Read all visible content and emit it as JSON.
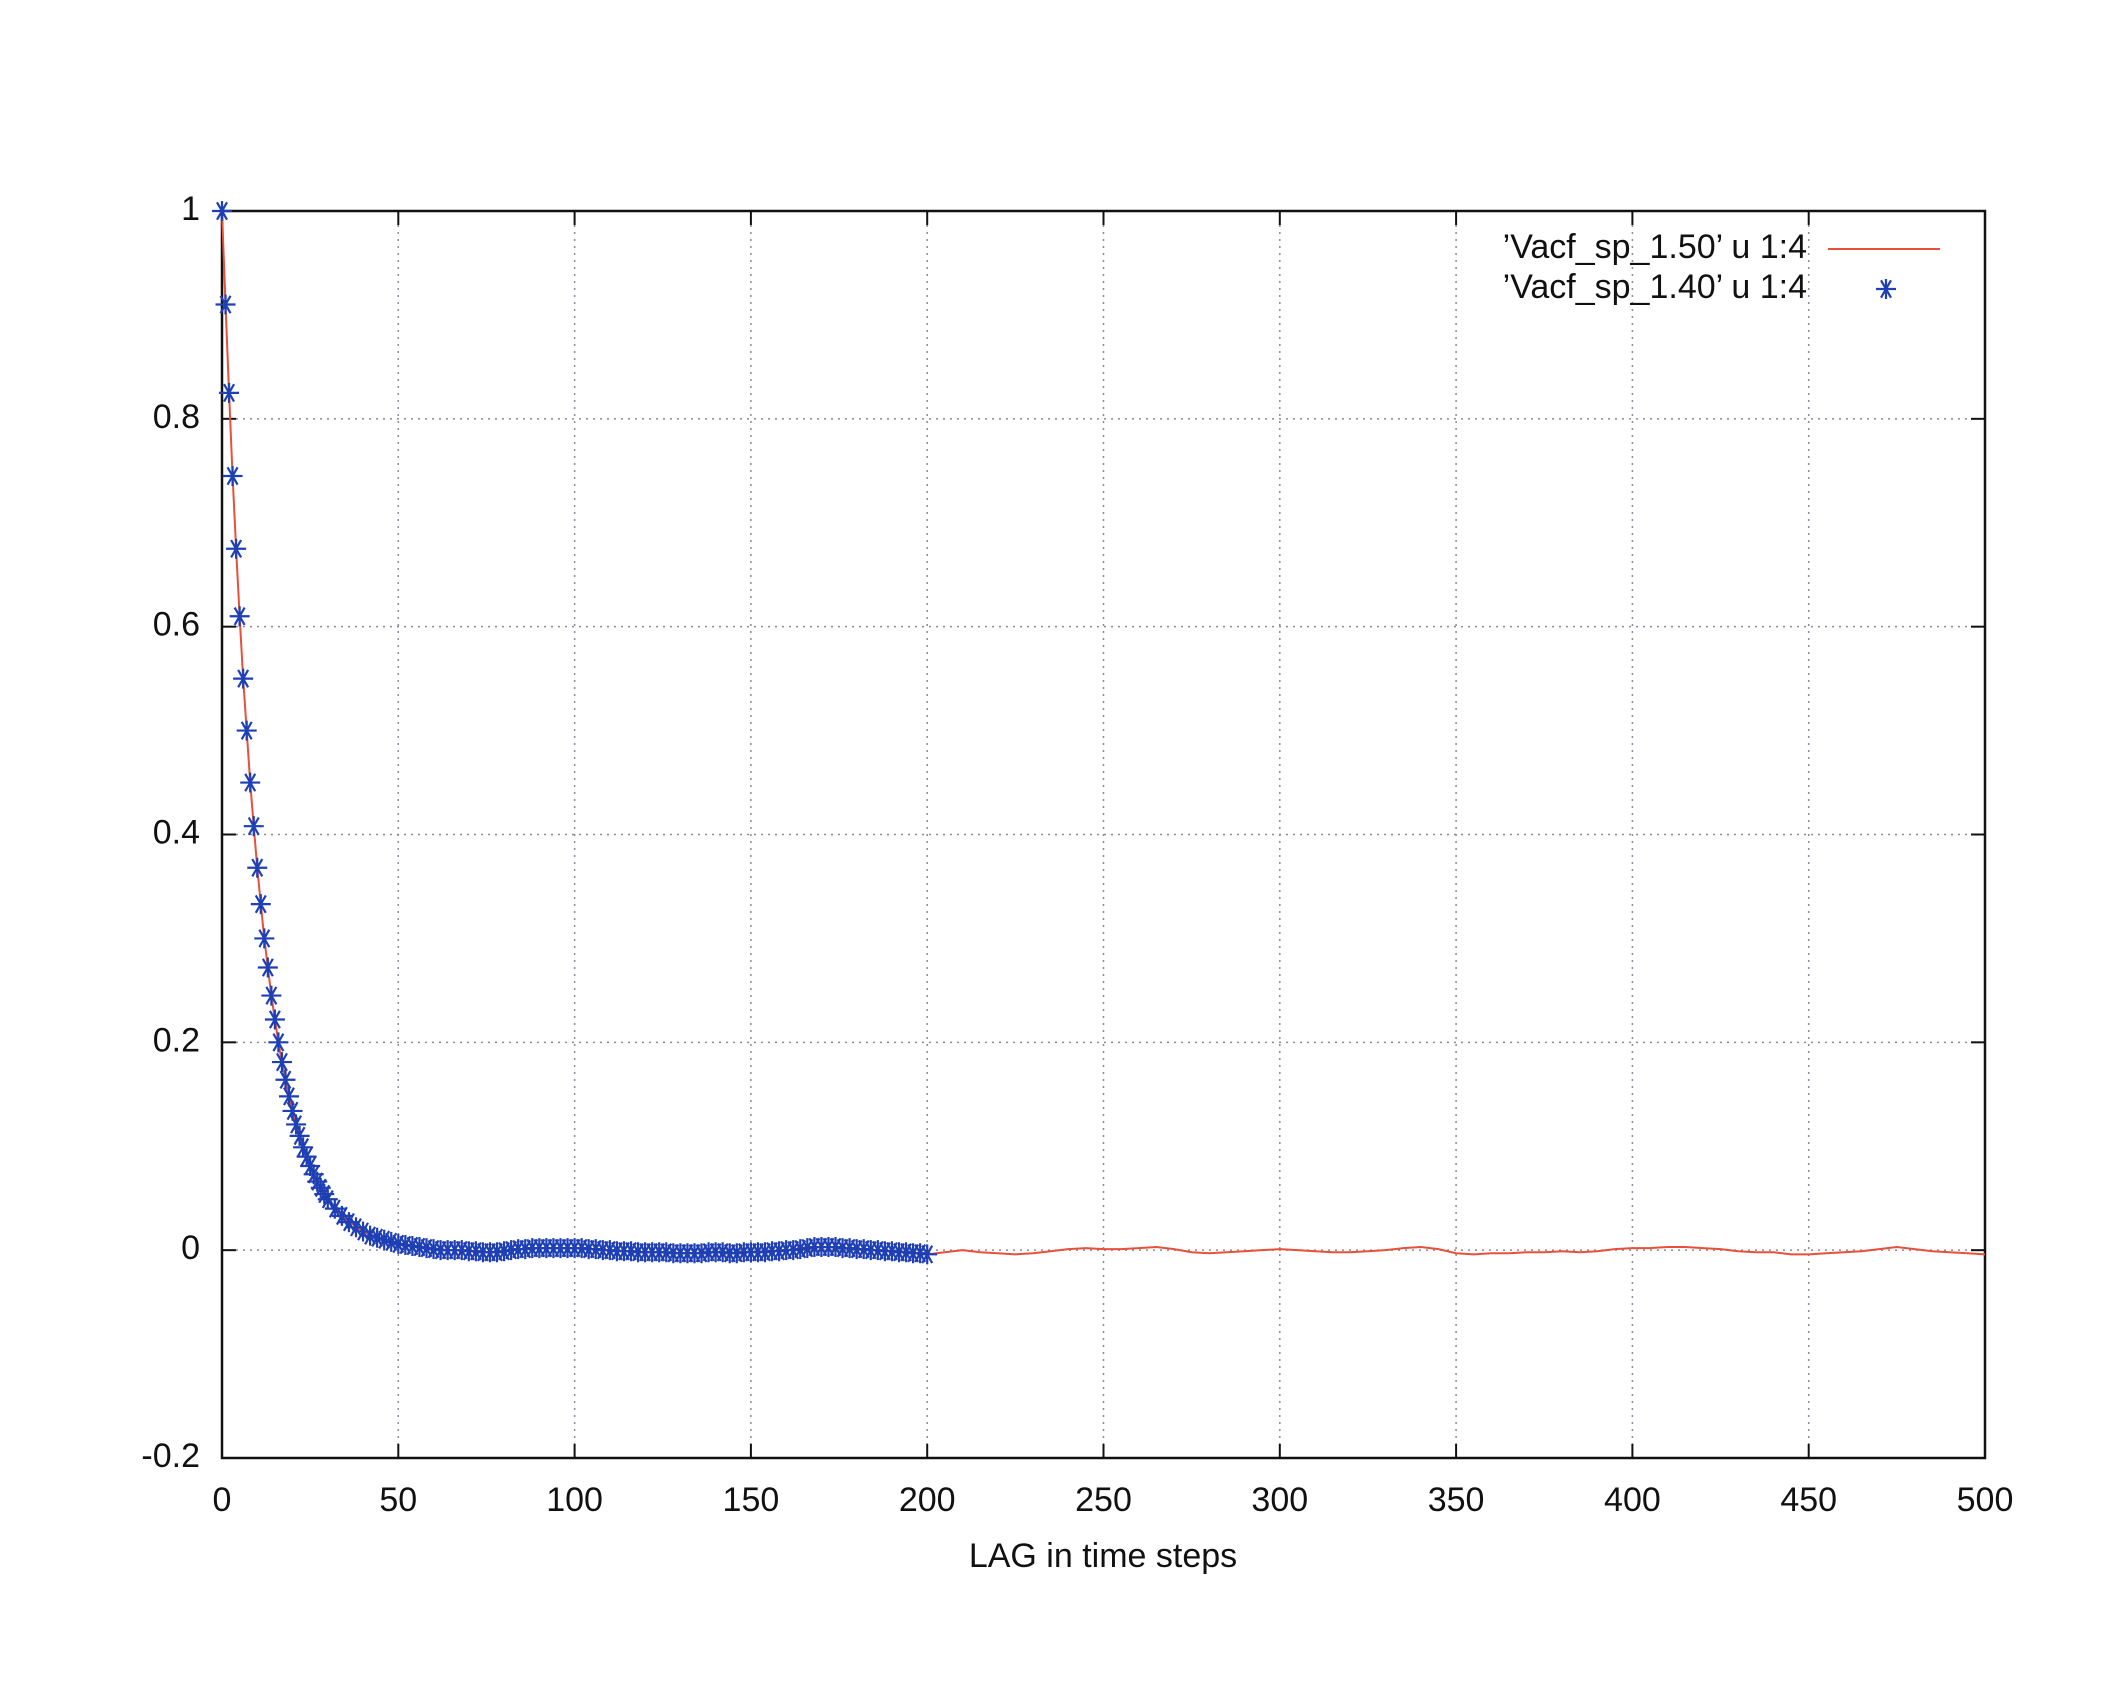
{
  "chart_data": {
    "type": "line",
    "xlabel": "LAG in time steps",
    "xlim": [
      0,
      500
    ],
    "xticks": [
      0,
      50,
      100,
      150,
      200,
      250,
      300,
      350,
      400,
      450,
      500
    ],
    "ylim": [
      -0.2,
      1
    ],
    "yticks": [
      -0.2,
      0,
      0.2,
      0.4,
      0.6,
      0.8,
      1
    ],
    "grid": true,
    "legend": "top-right",
    "series": [
      {
        "name": "’Vacf_sp_1.50’ u 1:4",
        "color": "#e8503a",
        "style": "line",
        "x": [
          0,
          1,
          2,
          3,
          4,
          5,
          6,
          7,
          8,
          9,
          10,
          11,
          12,
          13,
          14,
          15,
          16,
          17,
          18,
          19,
          20,
          21,
          22,
          23,
          24,
          25,
          26,
          27,
          28,
          29,
          30,
          35,
          40,
          45,
          50,
          55,
          60,
          65,
          70,
          75,
          80,
          85,
          90,
          95,
          100,
          105,
          110,
          115,
          120,
          125,
          130,
          135,
          140,
          145,
          150,
          155,
          160,
          165,
          170,
          175,
          180,
          185,
          190,
          195,
          200,
          205,
          210,
          215,
          220,
          225,
          230,
          235,
          240,
          245,
          250,
          255,
          260,
          265,
          270,
          275,
          280,
          285,
          290,
          295,
          300,
          305,
          310,
          315,
          320,
          325,
          330,
          335,
          340,
          345,
          350,
          355,
          360,
          365,
          370,
          375,
          380,
          385,
          390,
          395,
          400,
          405,
          410,
          415,
          420,
          425,
          430,
          435,
          440,
          445,
          450,
          455,
          460,
          465,
          470,
          475,
          480,
          485,
          490,
          495,
          500
        ],
        "values": [
          1,
          0.91,
          0.825,
          0.745,
          0.675,
          0.61,
          0.55,
          0.5,
          0.45,
          0.408,
          0.368,
          0.333,
          0.3,
          0.272,
          0.245,
          0.222,
          0.2,
          0.181,
          0.164,
          0.148,
          0.134,
          0.121,
          0.11,
          0.099,
          0.09,
          0.081,
          0.073,
          0.066,
          0.06,
          0.054,
          0.049,
          0.03,
          0.018,
          0.011,
          0.006,
          0.003,
          0.001,
          0,
          -0.001,
          -0.002,
          -0.001,
          0.001,
          0.002,
          0.002,
          0.002,
          0.001,
          0,
          -0.001,
          -0.002,
          -0.002,
          -0.003,
          -0.003,
          -0.002,
          -0.003,
          -0.002,
          -0.001,
          0,
          0.002,
          0.003,
          0.003,
          0.001,
          0,
          -0.001,
          -0.002,
          -0.004,
          -0.002,
          0,
          -0.002,
          -0.003,
          -0.004,
          -0.003,
          -0.001,
          0.001,
          0.002,
          0.001,
          0.001,
          0.002,
          0.003,
          0.001,
          -0.002,
          -0.003,
          -0.002,
          -0.001,
          0,
          0.001,
          0,
          -0.001,
          -0.002,
          -0.002,
          -0.001,
          0,
          0.002,
          0.003,
          0.001,
          -0.003,
          -0.004,
          -0.003,
          -0.003,
          -0.002,
          -0.002,
          -0.001,
          -0.002,
          -0.001,
          0.001,
          0.002,
          0.002,
          0.003,
          0.003,
          0.002,
          0.001,
          -0.001,
          -0.002,
          -0.002,
          -0.004,
          -0.004,
          -0.003,
          -0.002,
          -0.001,
          0.001,
          0.003,
          0.001,
          -0.001,
          -0.002,
          -0.003,
          -0.004
        ]
      },
      {
        "name": "’Vacf_sp_1.40’ u 1:4",
        "color": "#1f3fb4",
        "style": "points",
        "x": [
          0,
          1,
          2,
          3,
          4,
          5,
          6,
          7,
          8,
          9,
          10,
          11,
          12,
          13,
          14,
          15,
          16,
          17,
          18,
          19,
          20,
          21,
          22,
          23,
          24,
          25,
          26,
          27,
          28,
          29,
          30,
          32,
          34,
          36,
          38,
          40,
          42,
          44,
          46,
          48,
          50,
          52,
          54,
          56,
          58,
          60,
          62,
          64,
          66,
          68,
          70,
          72,
          74,
          76,
          78,
          80,
          82,
          84,
          86,
          88,
          90,
          92,
          94,
          96,
          98,
          100,
          102,
          104,
          106,
          108,
          110,
          112,
          114,
          116,
          118,
          120,
          122,
          124,
          126,
          128,
          130,
          132,
          134,
          136,
          138,
          140,
          142,
          144,
          146,
          148,
          150,
          152,
          154,
          156,
          158,
          160,
          162,
          164,
          166,
          168,
          170,
          172,
          174,
          176,
          178,
          180,
          182,
          184,
          186,
          188,
          190,
          192,
          194,
          196,
          198,
          200
        ],
        "values": [
          1,
          0.91,
          0.825,
          0.745,
          0.675,
          0.61,
          0.55,
          0.5,
          0.45,
          0.408,
          0.368,
          0.333,
          0.3,
          0.272,
          0.245,
          0.222,
          0.2,
          0.181,
          0.164,
          0.148,
          0.134,
          0.121,
          0.11,
          0.099,
          0.09,
          0.081,
          0.073,
          0.066,
          0.06,
          0.054,
          0.049,
          0.04,
          0.033,
          0.027,
          0.022,
          0.018,
          0.014,
          0.012,
          0.01,
          0.008,
          0.006,
          0.005,
          0.004,
          0.003,
          0.002,
          0.001,
          0,
          0,
          0,
          0,
          -0.001,
          -0.001,
          -0.002,
          -0.002,
          -0.002,
          -0.001,
          0,
          0.001,
          0.001,
          0.002,
          0.002,
          0.002,
          0.002,
          0.002,
          0.002,
          0.002,
          0.002,
          0.001,
          0.001,
          0,
          0,
          -0.001,
          -0.001,
          -0.001,
          -0.002,
          -0.002,
          -0.002,
          -0.002,
          -0.002,
          -0.003,
          -0.003,
          -0.003,
          -0.003,
          -0.003,
          -0.002,
          -0.002,
          -0.002,
          -0.003,
          -0.003,
          -0.002,
          -0.002,
          -0.002,
          -0.002,
          -0.001,
          -0.001,
          0,
          0,
          0.001,
          0.002,
          0.003,
          0.003,
          0.003,
          0.003,
          0.002,
          0.002,
          0.001,
          0.001,
          0,
          0,
          -0.001,
          -0.001,
          -0.002,
          -0.002,
          -0.003,
          -0.003,
          -0.004
        ]
      }
    ]
  }
}
